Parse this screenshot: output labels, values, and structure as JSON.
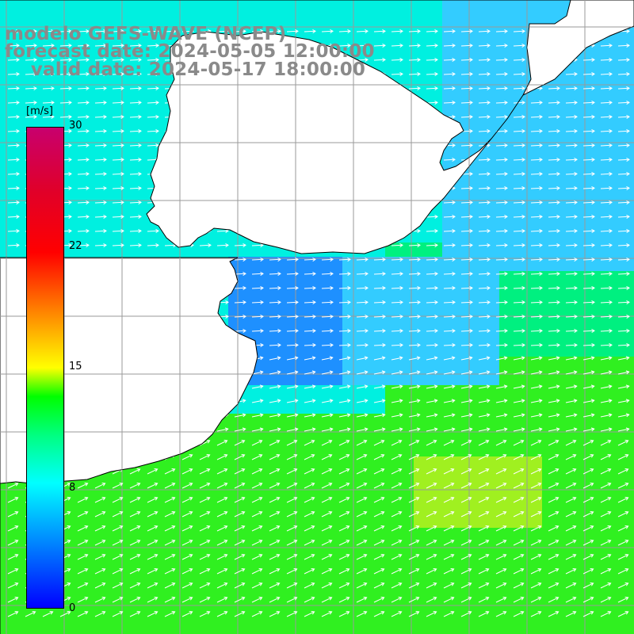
{
  "header": {
    "line1": "modelo GEFS-WAVE (NCEP)",
    "line2": "forecast date: 2024-05-05 12:00:00",
    "line3": "    valid date: 2024-05-17 18:00:00"
  },
  "colorbar": {
    "unit": "[m/s]",
    "ticks": [
      "30",
      "22",
      "15",
      "8",
      "0"
    ],
    "colors": [
      "#0000ff",
      "#0080ff",
      "#00ffff",
      "#00ff80",
      "#00ff00",
      "#ffff00",
      "#ff8000",
      "#ff0000",
      "#c8006e"
    ]
  },
  "map": {
    "land_color": "#ffffff",
    "grid_color": "#9a9a9a",
    "vector_color": "#ffffff",
    "coast_color": "#000000",
    "field_colors": {
      "near_coast": "#1e90ff",
      "light_blue": "#33ccff",
      "cyan": "#00f0e0",
      "sea_green": "#00f080",
      "green": "#30f020",
      "yellow_green": "#a0f020"
    }
  }
}
